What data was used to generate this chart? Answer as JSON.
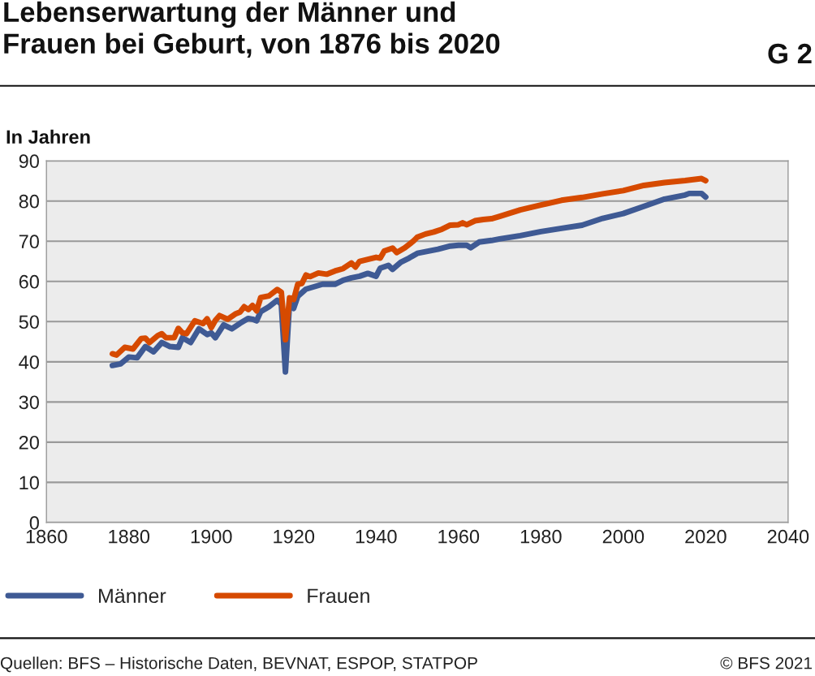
{
  "chart_data": {
    "type": "line",
    "title": "Lebenserwartung der Männer und\nFrauen bei Geburt, von 1876 bis 2020",
    "ylabel": "In Jahren",
    "annotations": [
      "G 2",
      "Quellen: BFS – Historische Daten, BEVNAT, ESPOP, STATPOP",
      "© BFS 2021"
    ],
    "xlim": [
      1860,
      2040
    ],
    "xticks": [
      1860,
      1880,
      1900,
      1920,
      1940,
      1960,
      1980,
      2000,
      2020,
      2040
    ],
    "ylim": [
      0,
      90
    ],
    "yticks": [
      0,
      10,
      20,
      30,
      40,
      50,
      60,
      70,
      80,
      90
    ],
    "grid": "y",
    "legend": "bottom",
    "marker": "none",
    "line_style": "solid",
    "series": [
      {
        "name": "Männer",
        "color": "#3f5a94",
        "x": [
          1876,
          1878,
          1880,
          1882,
          1884,
          1886,
          1888,
          1890,
          1892,
          1893,
          1895,
          1897,
          1899,
          1900,
          1901,
          1903,
          1905,
          1907,
          1909,
          1910,
          1911,
          1912,
          1914,
          1916,
          1917,
          1918,
          1919,
          1920,
          1921,
          1923,
          1925,
          1927,
          1930,
          1932,
          1934,
          1936,
          1938,
          1940,
          1941,
          1943,
          1944,
          1946,
          1948,
          1950,
          1952,
          1955,
          1958,
          1960,
          1962,
          1963,
          1965,
          1968,
          1970,
          1975,
          1980,
          1985,
          1990,
          1995,
          2000,
          2005,
          2010,
          2015,
          2016,
          2019,
          2020
        ],
        "values": [
          39.1,
          39.5,
          41.2,
          41,
          43.8,
          42.5,
          44.8,
          43.8,
          43.6,
          46,
          44.8,
          48.2,
          46.8,
          47.2,
          46,
          49.2,
          48.2,
          49.6,
          50.8,
          50.6,
          50.2,
          52.5,
          53.7,
          55.3,
          54.3,
          37.5,
          54.7,
          53.3,
          56.3,
          58.1,
          58.7,
          59.3,
          59.3,
          60.3,
          60.9,
          61.3,
          62,
          61.3,
          63.3,
          64,
          63,
          64.8,
          65.8,
          67,
          67.4,
          68,
          68.8,
          69,
          69,
          68.4,
          69.8,
          70.2,
          70.6,
          71.4,
          72.4,
          73.2,
          74,
          75.7,
          76.9,
          78.7,
          80.5,
          81.5,
          81.9,
          81.9,
          81.0
        ]
      },
      {
        "name": "Frauen",
        "color": "#d64a00",
        "x": [
          1876,
          1877,
          1879,
          1881,
          1883,
          1884,
          1885,
          1887,
          1888,
          1889,
          1891,
          1892,
          1893,
          1894,
          1896,
          1898,
          1899,
          1900,
          1901,
          1902,
          1904,
          1906,
          1907,
          1908,
          1909,
          1910,
          1911,
          1912,
          1914,
          1916,
          1917,
          1918,
          1919,
          1920,
          1921,
          1922,
          1923,
          1924,
          1926,
          1928,
          1930,
          1932,
          1934,
          1935,
          1936,
          1938,
          1940,
          1941,
          1942,
          1944,
          1945,
          1947,
          1949,
          1950,
          1952,
          1954,
          1956,
          1958,
          1960,
          1961,
          1962,
          1964,
          1966,
          1968,
          1970,
          1975,
          1980,
          1985,
          1990,
          1995,
          2000,
          2005,
          2010,
          2013,
          2015,
          2019,
          2020
        ],
        "values": [
          42,
          41.7,
          43.6,
          43.2,
          45.8,
          45.9,
          44.8,
          46.5,
          47,
          46,
          46,
          48.3,
          47.2,
          47,
          50.2,
          49.5,
          50.7,
          48.5,
          50.3,
          51.5,
          50.6,
          52,
          52.4,
          53.7,
          53,
          54,
          52.7,
          56,
          56.4,
          58,
          57.3,
          45.5,
          55.9,
          55.5,
          59.3,
          59.5,
          61.6,
          61.2,
          62.1,
          61.8,
          62.6,
          63.2,
          64.6,
          63.6,
          65,
          65.5,
          66,
          65.8,
          67.6,
          68.3,
          67.2,
          68.4,
          70,
          71,
          71.8,
          72.3,
          73,
          74,
          74.1,
          74.6,
          74.1,
          75.1,
          75.4,
          75.6,
          76.2,
          77.8,
          79,
          80.2,
          80.9,
          81.8,
          82.6,
          83.9,
          84.6,
          84.9,
          85.1,
          85.6,
          85.1
        ]
      }
    ]
  }
}
